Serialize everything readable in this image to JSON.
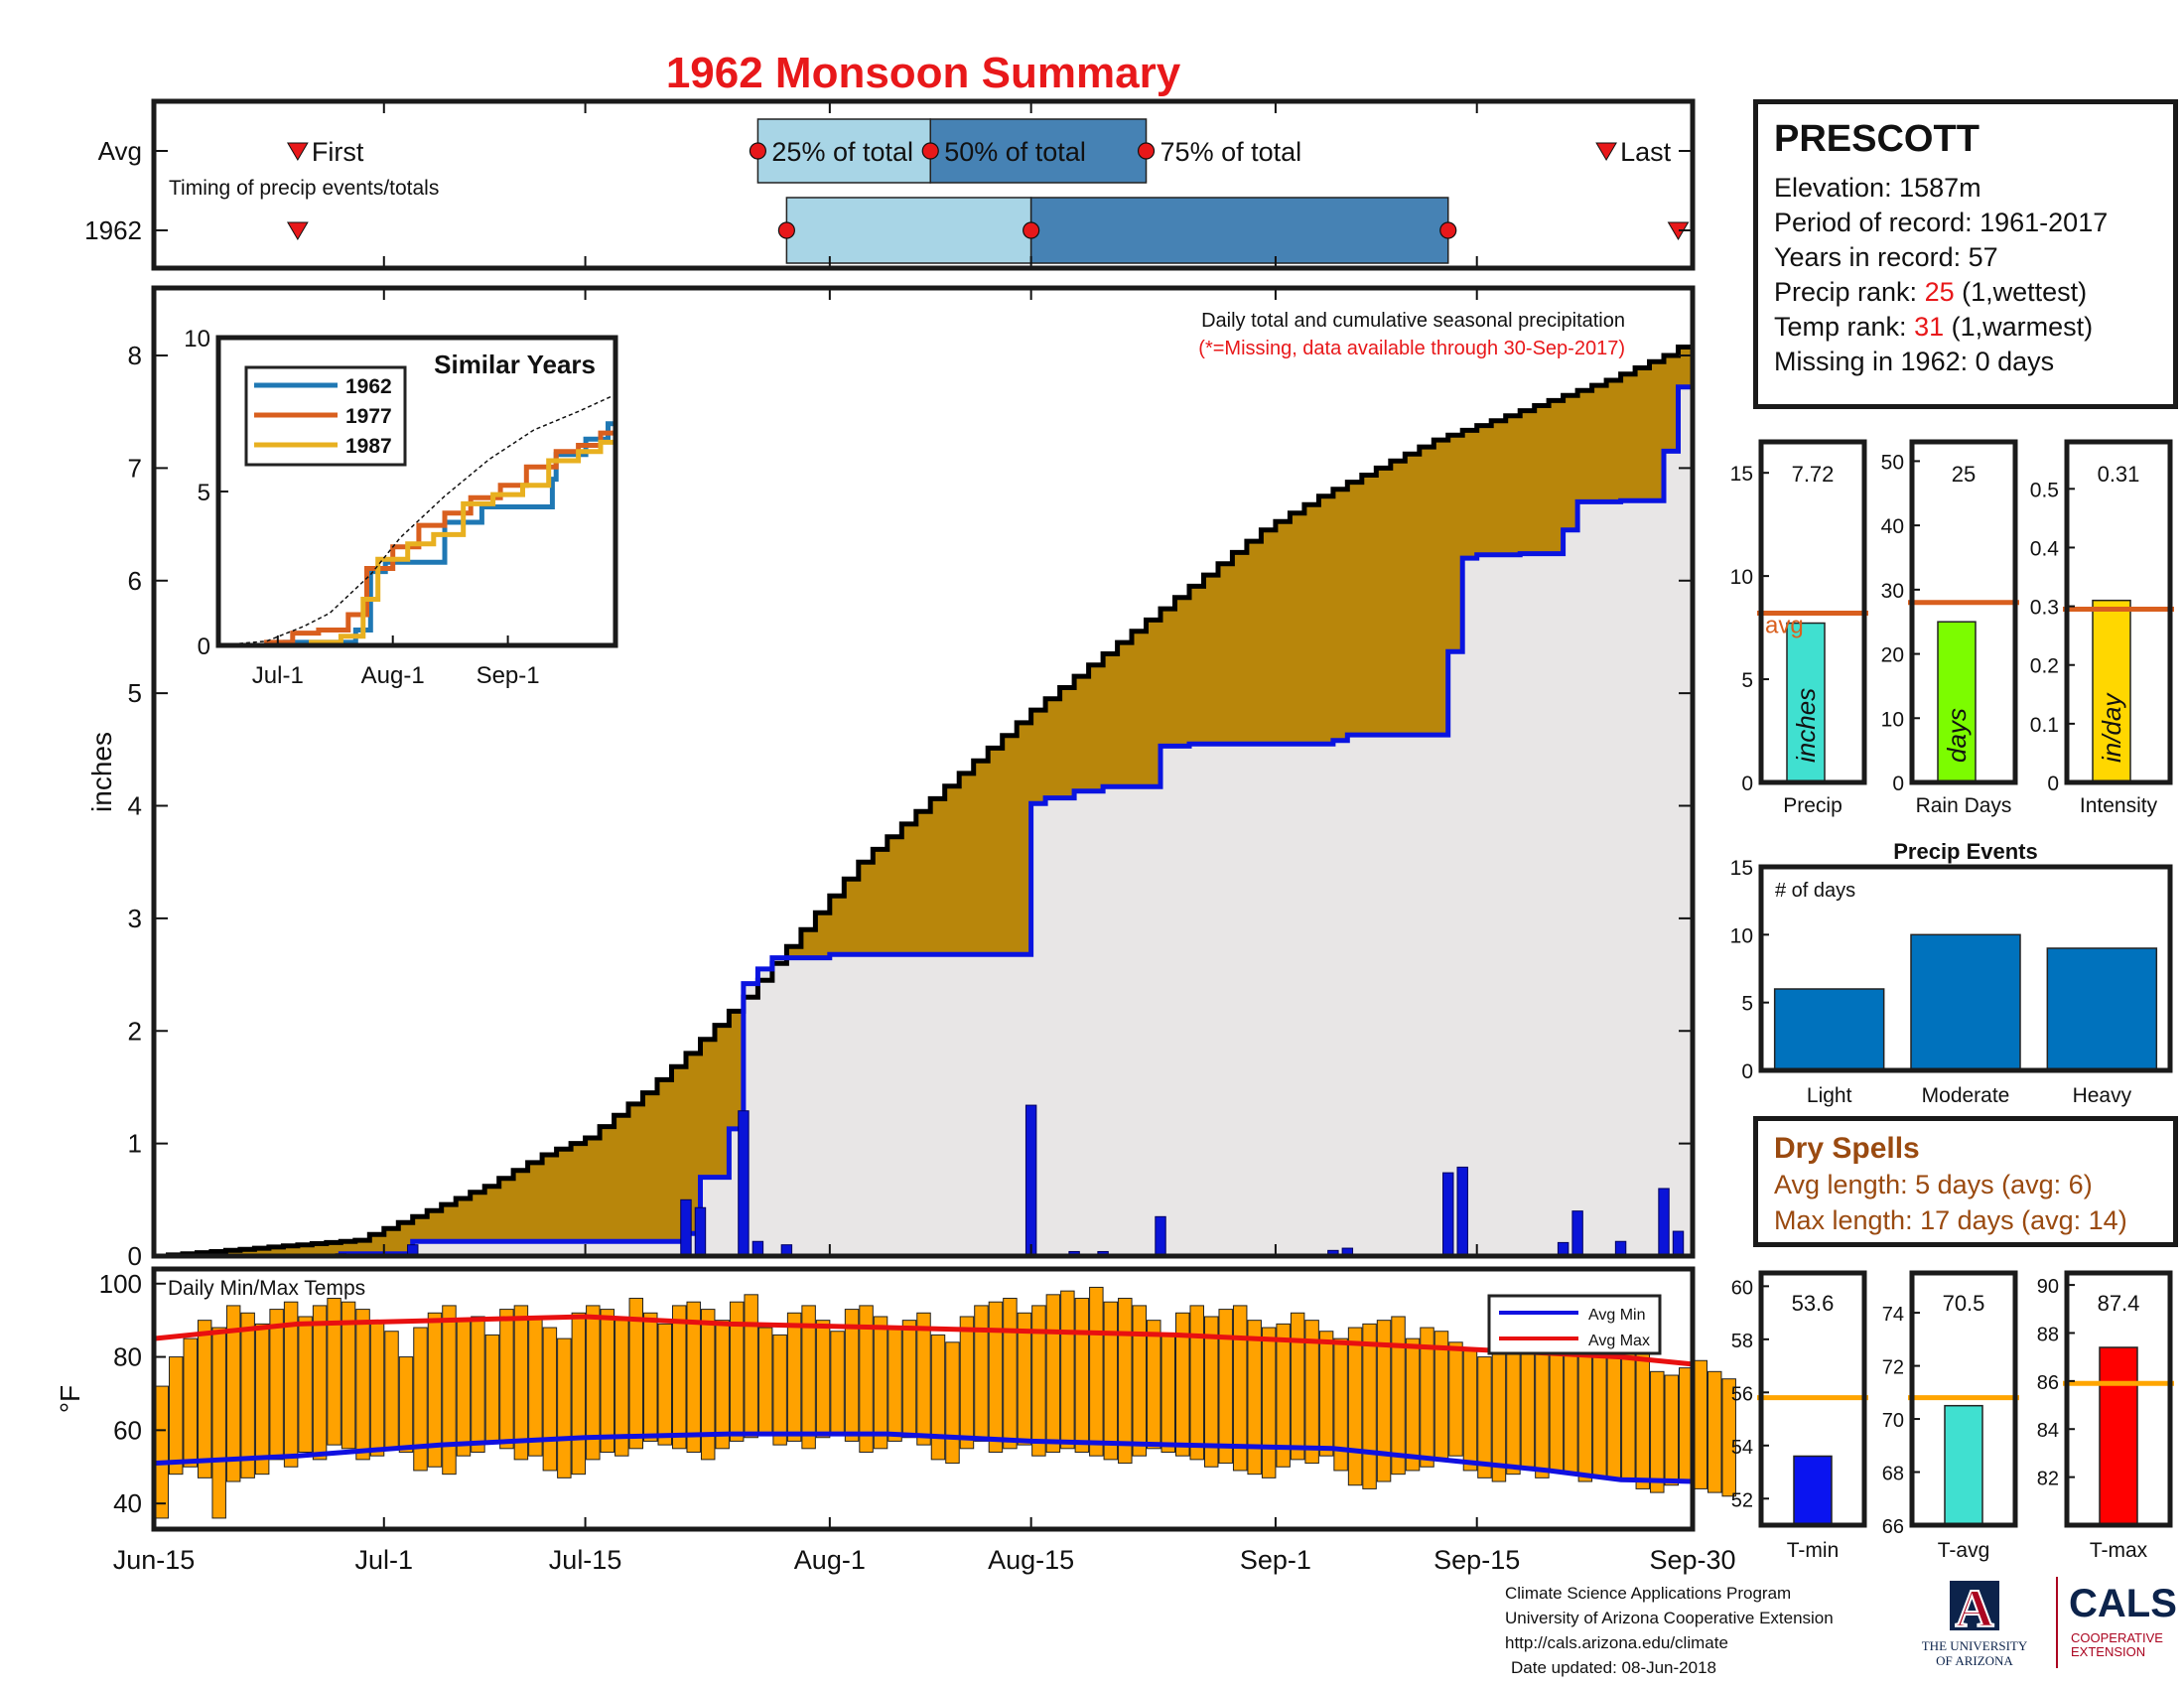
{
  "title": "1962 Monsoon Summary",
  "timing": {
    "rows": [
      "Avg",
      "1962"
    ],
    "note": "Timing of precip events/totals",
    "labels": {
      "first": "First",
      "p25": "25% of total",
      "p50": "50% of total",
      "p75": "75% of total",
      "last": "Last"
    },
    "avg": {
      "first": "2018-06-25",
      "p25": "2018-07-27",
      "p50": "2018-08-08",
      "p75": "2018-08-23",
      "last": "2018-09-24"
    },
    "y1962": {
      "first": "2018-06-25",
      "p25": "2018-07-29",
      "p50": "2018-08-15",
      "p75": "2018-09-13",
      "last": "2018-09-29"
    }
  },
  "station": {
    "name": "PRESCOTT",
    "elevation_label": "Elevation: 1587m",
    "period_label": "Period of record: 1961-2017",
    "years_label": "Years in record: 57",
    "precip_rank_prefix": "Precip rank: ",
    "precip_rank": "25",
    "precip_rank_suffix": " (1,wettest)",
    "temp_rank_prefix": "Temp rank: ",
    "temp_rank": "31",
    "temp_rank_suffix": " (1,warmest)",
    "missing_label": "Missing in 1962: 0 days"
  },
  "colors": {
    "cumulative_normal": "#000000",
    "cumulative_fill": "#b8860b",
    "observed": "#0a14e0",
    "below_fill": "#e8e6e6",
    "daily_bar": "#0a14d8",
    "temp_bar": "#ffa200",
    "avg_min": "#1010e0",
    "avg_max": "#e81010",
    "title": "#e8181a",
    "s1962": "#1f78b4",
    "s1977": "#d95f1e",
    "s1987": "#e8b020"
  },
  "chart_data": [
    {
      "id": "precip",
      "type": "line",
      "title": "Daily total and cumulative seasonal precipitation",
      "subtitle": "(*=Missing, data available through 30-Sep-2017)",
      "ylabel": "inches",
      "ylim": [
        0,
        8.6
      ],
      "yticks": [
        0,
        1,
        2,
        3,
        4,
        5,
        6,
        7,
        8
      ],
      "xlim": [
        "2018-06-15",
        "2018-09-30"
      ],
      "xticks": [
        {
          "date": "2018-06-15",
          "label": "Jun-15"
        },
        {
          "date": "2018-07-01",
          "label": "Jul-1"
        },
        {
          "date": "2018-07-15",
          "label": "Jul-15"
        },
        {
          "date": "2018-08-01",
          "label": "Aug-1"
        },
        {
          "date": "2018-08-15",
          "label": "Aug-15"
        },
        {
          "date": "2018-09-01",
          "label": "Sep-1"
        },
        {
          "date": "2018-09-15",
          "label": "Sep-15"
        },
        {
          "date": "2018-09-30",
          "label": "Sep-30"
        }
      ],
      "avg_cumulative": {
        "dates": [
          "2018-06-15",
          "2018-06-22",
          "2018-06-29",
          "2018-07-03",
          "2018-07-08",
          "2018-07-12",
          "2018-07-15",
          "2018-07-19",
          "2018-07-22",
          "2018-07-26",
          "2018-07-30",
          "2018-08-03",
          "2018-08-07",
          "2018-08-11",
          "2018-08-15",
          "2018-08-19",
          "2018-08-23",
          "2018-08-27",
          "2018-08-31",
          "2018-09-04",
          "2018-09-08",
          "2018-09-12",
          "2018-09-16",
          "2018-09-20",
          "2018-09-24",
          "2018-09-28",
          "2018-09-30"
        ],
        "values": [
          0.0,
          0.07,
          0.14,
          0.35,
          0.62,
          0.9,
          1.05,
          1.45,
          1.8,
          2.3,
          2.9,
          3.5,
          3.95,
          4.4,
          4.85,
          5.25,
          5.65,
          6.05,
          6.45,
          6.75,
          7.0,
          7.25,
          7.42,
          7.6,
          7.78,
          8.0,
          8.15
        ]
      },
      "observed_cumulative": {
        "dates": [
          "2018-06-15",
          "2018-06-28",
          "2018-07-03",
          "2018-07-22",
          "2018-07-23",
          "2018-07-25",
          "2018-07-26",
          "2018-07-27",
          "2018-07-28",
          "2018-08-01",
          "2018-08-15",
          "2018-08-16",
          "2018-08-18",
          "2018-08-20",
          "2018-08-24",
          "2018-08-26",
          "2018-09-05",
          "2018-09-06",
          "2018-09-13",
          "2018-09-14",
          "2018-09-15",
          "2018-09-18",
          "2018-09-21",
          "2018-09-22",
          "2018-09-25",
          "2018-09-28",
          "2018-09-29",
          "2018-09-30"
        ],
        "values": [
          0.0,
          0.02,
          0.13,
          0.2,
          0.7,
          1.13,
          2.42,
          2.55,
          2.65,
          2.68,
          4.02,
          4.07,
          4.13,
          4.17,
          4.53,
          4.55,
          4.58,
          4.63,
          5.37,
          6.2,
          6.23,
          6.24,
          6.45,
          6.7,
          6.71,
          7.15,
          7.72,
          7.72
        ]
      },
      "daily": {
        "dates": [
          "2018-06-28",
          "2018-07-03",
          "2018-07-22",
          "2018-07-23",
          "2018-07-26",
          "2018-07-27",
          "2018-07-29",
          "2018-08-15",
          "2018-08-18",
          "2018-08-20",
          "2018-08-24",
          "2018-09-05",
          "2018-09-06",
          "2018-09-13",
          "2018-09-14",
          "2018-09-21",
          "2018-09-22",
          "2018-09-25",
          "2018-09-28",
          "2018-09-29"
        ],
        "values": [
          0.02,
          0.1,
          0.5,
          0.43,
          1.29,
          0.13,
          0.1,
          1.34,
          0.04,
          0.04,
          0.35,
          0.05,
          0.07,
          0.74,
          0.79,
          0.12,
          0.4,
          0.13,
          0.6,
          0.22
        ]
      }
    },
    {
      "id": "similar-years",
      "type": "line",
      "title": "Similar Years",
      "ylim": [
        0,
        10
      ],
      "yticks": [
        0,
        5,
        10
      ],
      "xlim": [
        "2018-06-15",
        "2018-09-30"
      ],
      "xticks": [
        {
          "date": "2018-07-01",
          "label": "Jul-1"
        },
        {
          "date": "2018-08-01",
          "label": "Aug-1"
        },
        {
          "date": "2018-09-01",
          "label": "Sep-1"
        }
      ],
      "series": [
        {
          "name": "1962",
          "dates": [
            "2018-06-15",
            "2018-07-03",
            "2018-07-22",
            "2018-07-26",
            "2018-07-30",
            "2018-08-15",
            "2018-08-25",
            "2018-09-13",
            "2018-09-14",
            "2018-09-22",
            "2018-09-28",
            "2018-09-30"
          ],
          "values": [
            0.0,
            0.1,
            0.5,
            2.4,
            2.7,
            4.0,
            4.5,
            5.4,
            6.2,
            6.7,
            7.2,
            7.7
          ]
        },
        {
          "name": "1977",
          "dates": [
            "2018-06-15",
            "2018-06-28",
            "2018-07-05",
            "2018-07-12",
            "2018-07-20",
            "2018-07-25",
            "2018-08-01",
            "2018-08-08",
            "2018-08-15",
            "2018-08-22",
            "2018-08-30",
            "2018-09-06",
            "2018-09-14",
            "2018-09-20",
            "2018-09-26",
            "2018-09-30"
          ],
          "values": [
            0.0,
            0.1,
            0.4,
            0.5,
            1.0,
            2.5,
            3.2,
            3.9,
            4.3,
            4.8,
            5.2,
            5.8,
            6.3,
            6.5,
            6.9,
            7.3
          ]
        },
        {
          "name": "1987",
          "dates": [
            "2018-06-15",
            "2018-07-10",
            "2018-07-18",
            "2018-07-24",
            "2018-07-28",
            "2018-08-05",
            "2018-08-12",
            "2018-08-20",
            "2018-08-28",
            "2018-09-05",
            "2018-09-12",
            "2018-09-20",
            "2018-09-26",
            "2018-09-30"
          ],
          "values": [
            0.0,
            0.1,
            0.3,
            1.5,
            2.8,
            3.3,
            3.6,
            4.6,
            4.9,
            5.2,
            6.0,
            6.3,
            6.6,
            6.8
          ]
        },
        {
          "name": "",
          "dates": [
            "2018-06-15",
            "2018-06-28",
            "2018-07-08",
            "2018-07-15",
            "2018-07-26",
            "2018-08-03",
            "2018-08-15",
            "2018-08-27",
            "2018-09-08",
            "2018-09-20",
            "2018-09-30"
          ],
          "values": [
            0.0,
            0.14,
            0.62,
            1.05,
            2.3,
            3.5,
            4.85,
            6.05,
            7.0,
            7.6,
            8.15
          ]
        }
      ]
    },
    {
      "id": "temps",
      "type": "bar",
      "title": "Daily Min/Max Temps",
      "ylabel": "°F",
      "ylim": [
        33,
        104
      ],
      "yticks": [
        40,
        60,
        80,
        100
      ],
      "xlim": [
        "2018-06-15",
        "2018-09-30"
      ],
      "legend": [
        "Avg Min",
        "Avg Max"
      ],
      "legend_position": "top-right",
      "daily_max": [
        72,
        80,
        85,
        90,
        88,
        94,
        92,
        89,
        93,
        95,
        91,
        94,
        96,
        95,
        93,
        90,
        87,
        80,
        88,
        92,
        94,
        90,
        91,
        86,
        93,
        94,
        91,
        88,
        85,
        92,
        94,
        93,
        90,
        96,
        92,
        89,
        94,
        95,
        93,
        90,
        95,
        97,
        88,
        86,
        92,
        94,
        90,
        87,
        93,
        94,
        91,
        88,
        90,
        92,
        86,
        84,
        91,
        94,
        95,
        96,
        92,
        94,
        97,
        98,
        96,
        99,
        95,
        96,
        94,
        90,
        86,
        92,
        94,
        91,
        93,
        94,
        90,
        88,
        89,
        92,
        90,
        87,
        85,
        88,
        89,
        90,
        91,
        85,
        88,
        87,
        84,
        82,
        80,
        86,
        88,
        85,
        86,
        84,
        83,
        87,
        86,
        84,
        82,
        82,
        76,
        75,
        77,
        79,
        76,
        74
      ],
      "daily_min": [
        36,
        48,
        50,
        47,
        36,
        46,
        47,
        48,
        52,
        50,
        54,
        52,
        56,
        55,
        52,
        53,
        55,
        54,
        49,
        50,
        48,
        53,
        54,
        57,
        55,
        52,
        53,
        49,
        47,
        48,
        52,
        54,
        53,
        55,
        57,
        56,
        55,
        54,
        52,
        55,
        57,
        58,
        59,
        56,
        57,
        55,
        58,
        59,
        57,
        54,
        55,
        57,
        58,
        56,
        52,
        51,
        55,
        57,
        54,
        55,
        56,
        53,
        54,
        55,
        54,
        53,
        52,
        51,
        53,
        55,
        54,
        53,
        52,
        50,
        51,
        49,
        48,
        47,
        50,
        52,
        51,
        53,
        49,
        45,
        44,
        46,
        48,
        49,
        50,
        52,
        53,
        49,
        47,
        46,
        48,
        50,
        47,
        49,
        48,
        46,
        47,
        47,
        46,
        44,
        43,
        45,
        46,
        44,
        43,
        42
      ],
      "avg_min": {
        "dates": [
          "2018-06-15",
          "2018-06-25",
          "2018-07-05",
          "2018-07-15",
          "2018-07-25",
          "2018-08-05",
          "2018-08-15",
          "2018-08-25",
          "2018-09-05",
          "2018-09-15",
          "2018-09-20",
          "2018-09-25",
          "2018-09-30"
        ],
        "values": [
          51,
          53,
          56,
          58,
          59,
          59,
          57,
          56,
          55,
          51,
          49,
          46.5,
          46
        ]
      },
      "avg_max": {
        "dates": [
          "2018-06-15",
          "2018-06-25",
          "2018-07-05",
          "2018-07-15",
          "2018-07-25",
          "2018-08-05",
          "2018-08-15",
          "2018-08-25",
          "2018-09-05",
          "2018-09-15",
          "2018-09-25",
          "2018-09-30"
        ],
        "values": [
          85,
          89,
          90,
          91,
          89,
          88,
          87,
          86,
          84,
          82,
          80,
          78
        ]
      }
    },
    {
      "id": "precip-summary",
      "type": "bar",
      "avg_label": "avg",
      "panels": [
        {
          "category": "Precip",
          "value": 7.72,
          "value_label": "7.72",
          "avg": 8.2,
          "unit": "inches",
          "ylim": [
            0,
            16.5
          ],
          "yticks": [
            0,
            5,
            10,
            15
          ],
          "color": "#40e0d0"
        },
        {
          "category": "Rain Days",
          "value": 25,
          "value_label": "25",
          "avg": 28,
          "unit": "days",
          "ylim": [
            0,
            53
          ],
          "yticks": [
            0,
            10,
            20,
            30,
            40,
            50
          ],
          "color": "#7cfc00"
        },
        {
          "category": "Intensity",
          "value": 0.31,
          "value_label": "0.31",
          "avg": 0.295,
          "unit": "in/day",
          "ylim": [
            0,
            0.58
          ],
          "yticks": [
            0.1,
            0.2,
            0.3,
            0.4,
            0.5
          ],
          "tick_labels": [
            "0.1",
            "0.2",
            "0.3",
            "0.4",
            "0.5"
          ],
          "zero_label": "0",
          "color": "#ffd700"
        }
      ]
    },
    {
      "id": "precip-events",
      "type": "bar",
      "title": "Precip Events",
      "ylabel": "# of days",
      "categories": [
        "Light",
        "Moderate",
        "Heavy"
      ],
      "values": [
        6,
        10,
        9
      ],
      "ylim": [
        0,
        15
      ],
      "yticks": [
        0,
        5,
        10,
        15
      ],
      "color": "#0072bd"
    },
    {
      "id": "temp-summary",
      "type": "bar",
      "panels": [
        {
          "category": "T-min",
          "value": 53.6,
          "value_label": "53.6",
          "avg": 55.8,
          "ylim": [
            51,
            60.5
          ],
          "yticks": [
            52,
            54,
            56,
            58,
            60
          ],
          "color": "#0a14f0"
        },
        {
          "category": "T-avg",
          "value": 70.5,
          "value_label": "70.5",
          "avg": 70.8,
          "ylim": [
            66,
            75.5
          ],
          "yticks": [
            66,
            68,
            70,
            72,
            74
          ],
          "color": "#40e0d0"
        },
        {
          "category": "T-max",
          "value": 87.4,
          "value_label": "87.4",
          "avg": 85.9,
          "ylim": [
            80,
            90.5
          ],
          "yticks": [
            82,
            84,
            86,
            88,
            90
          ],
          "color": "#ff0000"
        }
      ]
    }
  ],
  "dry_spells": {
    "title": "Dry Spells",
    "avg_length": "Avg length: 5 days (avg: 6)",
    "max_length": "Max length: 17 days (avg: 14)"
  },
  "footer": {
    "line1": "Climate Science Applications Program",
    "line2": "University of Arizona Cooperative Extension",
    "line3": "http://cals.arizona.edu/climate",
    "line4": "Date updated: 08-Jun-2018"
  },
  "logos": {
    "ua_mark": "A",
    "ua_line1": "THE UNIVERSITY",
    "ua_line2": "OF ARIZONA",
    "cals_name": "CALS",
    "cals_line1": "COOPERATIVE",
    "cals_line2": "EXTENSION",
    "ua_color": "#0c234b",
    "ua_red": "#ab0520"
  }
}
